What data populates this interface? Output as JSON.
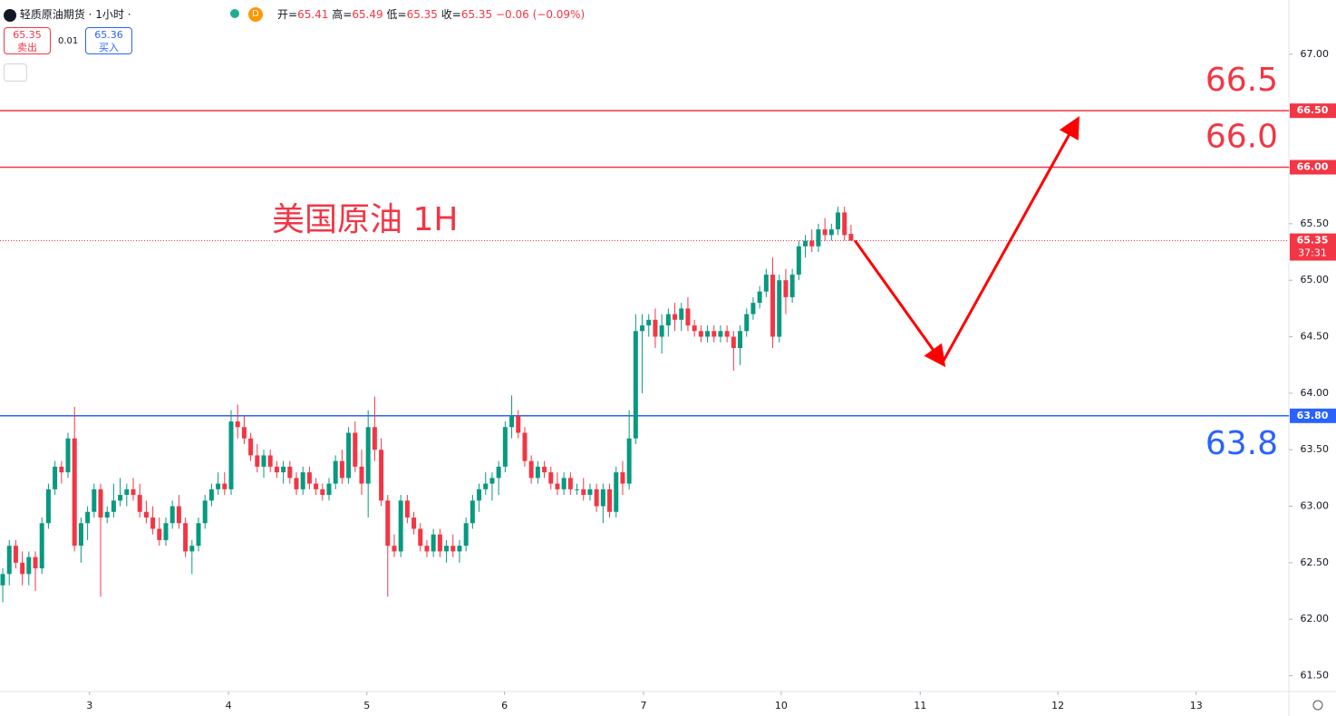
{
  "header": {
    "symbol": "轻质原油期货 · 1小时 ·",
    "badge": "D",
    "ohlc": [
      "开=",
      "65.41",
      "高=",
      "65.49",
      "低=",
      "65.35",
      "收=",
      "65.35"
    ],
    "change": "−0.06 (−0.09%)",
    "sell": {
      "price": "65.35",
      "label": "卖出"
    },
    "spread": "0.01",
    "buy": {
      "price": "65.36",
      "label": "买入"
    }
  },
  "chart_data": {
    "type": "candlestick",
    "annotation": "美国原油 1H",
    "up_color": "#089981",
    "down_color": "#f23645",
    "ohlc": [
      [
        62.3,
        62.45,
        62.15,
        62.4
      ],
      [
        62.4,
        62.7,
        62.3,
        62.65
      ],
      [
        62.65,
        62.7,
        62.45,
        62.5
      ],
      [
        62.5,
        62.6,
        62.3,
        62.4
      ],
      [
        62.4,
        62.6,
        62.3,
        62.55
      ],
      [
        62.55,
        62.6,
        62.25,
        62.45
      ],
      [
        62.45,
        62.9,
        62.4,
        62.85
      ],
      [
        62.85,
        63.2,
        62.8,
        63.15
      ],
      [
        63.15,
        63.4,
        63.1,
        63.35
      ],
      [
        63.35,
        63.4,
        63.2,
        63.3
      ],
      [
        63.3,
        63.65,
        63.25,
        63.6
      ],
      [
        63.6,
        63.88,
        62.6,
        62.65
      ],
      [
        62.65,
        62.9,
        62.5,
        62.85
      ],
      [
        62.85,
        63.0,
        62.7,
        62.95
      ],
      [
        62.95,
        63.2,
        62.9,
        63.15
      ],
      [
        63.15,
        63.2,
        62.2,
        62.9
      ],
      [
        62.9,
        63.0,
        62.85,
        62.95
      ],
      [
        62.95,
        63.2,
        62.9,
        63.05
      ],
      [
        63.05,
        63.25,
        63.0,
        63.1
      ],
      [
        63.1,
        63.2,
        63.0,
        63.15
      ],
      [
        63.15,
        63.25,
        63.05,
        63.1
      ],
      [
        63.1,
        63.2,
        62.9,
        62.95
      ],
      [
        62.95,
        63.05,
        62.85,
        62.9
      ],
      [
        62.9,
        63.0,
        62.75,
        62.8
      ],
      [
        62.8,
        62.9,
        62.65,
        62.7
      ],
      [
        62.7,
        62.9,
        62.65,
        62.85
      ],
      [
        62.85,
        63.05,
        62.8,
        63.0
      ],
      [
        63.0,
        63.1,
        62.8,
        62.85
      ],
      [
        62.85,
        62.9,
        62.55,
        62.6
      ],
      [
        62.6,
        62.7,
        62.4,
        62.65
      ],
      [
        62.65,
        62.9,
        62.6,
        62.85
      ],
      [
        62.85,
        63.1,
        62.8,
        63.05
      ],
      [
        63.05,
        63.2,
        63.0,
        63.15
      ],
      [
        63.15,
        63.3,
        63.1,
        63.2
      ],
      [
        63.2,
        63.3,
        63.1,
        63.15
      ],
      [
        63.15,
        63.85,
        63.1,
        63.75
      ],
      [
        63.75,
        63.9,
        63.6,
        63.7
      ],
      [
        63.7,
        63.8,
        63.55,
        63.6
      ],
      [
        63.6,
        63.65,
        63.4,
        63.45
      ],
      [
        63.45,
        63.55,
        63.3,
        63.35
      ],
      [
        63.35,
        63.5,
        63.25,
        63.45
      ],
      [
        63.45,
        63.5,
        63.3,
        63.35
      ],
      [
        63.35,
        63.4,
        63.25,
        63.3
      ],
      [
        63.3,
        63.4,
        63.2,
        63.35
      ],
      [
        63.35,
        63.4,
        63.2,
        63.25
      ],
      [
        63.25,
        63.3,
        63.1,
        63.15
      ],
      [
        63.15,
        63.35,
        63.1,
        63.3
      ],
      [
        63.3,
        63.35,
        63.15,
        63.2
      ],
      [
        63.2,
        63.25,
        63.1,
        63.15
      ],
      [
        63.15,
        63.2,
        63.05,
        63.1
      ],
      [
        63.1,
        63.25,
        63.05,
        63.2
      ],
      [
        63.2,
        63.45,
        63.15,
        63.4
      ],
      [
        63.4,
        63.5,
        63.2,
        63.25
      ],
      [
        63.25,
        63.7,
        63.2,
        63.65
      ],
      [
        63.65,
        63.75,
        63.3,
        63.35
      ],
      [
        63.35,
        63.5,
        63.1,
        63.2
      ],
      [
        63.2,
        63.85,
        62.9,
        63.7
      ],
      [
        63.7,
        63.97,
        63.4,
        63.5
      ],
      [
        63.5,
        63.6,
        63.0,
        63.05
      ],
      [
        63.05,
        63.1,
        62.2,
        62.65
      ],
      [
        62.65,
        62.75,
        62.55,
        62.6
      ],
      [
        62.6,
        63.1,
        62.55,
        63.05
      ],
      [
        63.05,
        63.1,
        62.85,
        62.9
      ],
      [
        62.9,
        62.95,
        62.75,
        62.8
      ],
      [
        62.8,
        62.85,
        62.6,
        62.65
      ],
      [
        62.65,
        62.7,
        62.55,
        62.6
      ],
      [
        62.6,
        62.8,
        62.55,
        62.75
      ],
      [
        62.75,
        62.8,
        62.55,
        62.6
      ],
      [
        62.6,
        62.7,
        62.5,
        62.65
      ],
      [
        62.65,
        62.75,
        62.55,
        62.6
      ],
      [
        62.6,
        62.7,
        62.5,
        62.65
      ],
      [
        62.65,
        62.9,
        62.6,
        62.85
      ],
      [
        62.85,
        63.1,
        62.8,
        63.05
      ],
      [
        63.05,
        63.2,
        62.95,
        63.15
      ],
      [
        63.15,
        63.3,
        63.1,
        63.2
      ],
      [
        63.2,
        63.3,
        63.05,
        63.25
      ],
      [
        63.25,
        63.4,
        63.1,
        63.35
      ],
      [
        63.35,
        63.75,
        63.3,
        63.7
      ],
      [
        63.7,
        63.98,
        63.6,
        63.8
      ],
      [
        63.8,
        63.85,
        63.6,
        63.65
      ],
      [
        63.65,
        63.7,
        63.35,
        63.4
      ],
      [
        63.4,
        63.45,
        63.2,
        63.25
      ],
      [
        63.25,
        63.4,
        63.2,
        63.35
      ],
      [
        63.35,
        63.4,
        63.25,
        63.3
      ],
      [
        63.3,
        63.35,
        63.15,
        63.2
      ],
      [
        63.2,
        63.3,
        63.1,
        63.15
      ],
      [
        63.15,
        63.3,
        63.1,
        63.25
      ],
      [
        63.25,
        63.3,
        63.1,
        63.15
      ],
      [
        63.15,
        63.2,
        63.1,
        63.15
      ],
      [
        63.15,
        63.25,
        63.05,
        63.1
      ],
      [
        63.1,
        63.2,
        63.05,
        63.15
      ],
      [
        63.15,
        63.2,
        62.95,
        63.0
      ],
      [
        63.0,
        63.2,
        62.85,
        63.15
      ],
      [
        63.15,
        63.2,
        62.9,
        62.95
      ],
      [
        62.95,
        63.35,
        62.9,
        63.3
      ],
      [
        63.3,
        63.4,
        63.1,
        63.2
      ],
      [
        63.2,
        63.85,
        63.15,
        63.6
      ],
      [
        63.6,
        64.7,
        63.55,
        64.55
      ],
      [
        64.55,
        64.7,
        64.0,
        64.6
      ],
      [
        64.6,
        64.7,
        64.5,
        64.65
      ],
      [
        64.65,
        64.75,
        64.4,
        64.5
      ],
      [
        64.5,
        64.7,
        64.35,
        64.6
      ],
      [
        64.6,
        64.75,
        64.5,
        64.7
      ],
      [
        64.7,
        64.8,
        64.55,
        64.65
      ],
      [
        64.65,
        64.8,
        64.55,
        64.75
      ],
      [
        64.75,
        64.85,
        64.55,
        64.6
      ],
      [
        64.6,
        64.65,
        64.5,
        64.55
      ],
      [
        64.55,
        64.6,
        64.45,
        64.5
      ],
      [
        64.5,
        64.6,
        64.45,
        64.55
      ],
      [
        64.55,
        64.6,
        64.45,
        64.5
      ],
      [
        64.5,
        64.6,
        64.45,
        64.55
      ],
      [
        64.55,
        64.6,
        64.45,
        64.5
      ],
      [
        64.5,
        64.55,
        64.2,
        64.4
      ],
      [
        64.4,
        64.6,
        64.25,
        64.55
      ],
      [
        64.55,
        64.75,
        64.5,
        64.7
      ],
      [
        64.7,
        64.85,
        64.65,
        64.8
      ],
      [
        64.8,
        64.95,
        64.75,
        64.9
      ],
      [
        64.9,
        65.1,
        64.85,
        65.05
      ],
      [
        65.05,
        65.2,
        64.4,
        64.5
      ],
      [
        64.5,
        65.05,
        64.45,
        65.0
      ],
      [
        65.0,
        65.1,
        64.7,
        64.85
      ],
      [
        64.85,
        65.1,
        64.8,
        65.05
      ],
      [
        65.05,
        65.35,
        65.0,
        65.3
      ],
      [
        65.3,
        65.4,
        65.2,
        65.35
      ],
      [
        65.35,
        65.45,
        65.25,
        65.3
      ],
      [
        65.3,
        65.5,
        65.25,
        65.45
      ],
      [
        65.45,
        65.55,
        65.35,
        65.4
      ],
      [
        65.4,
        65.5,
        65.35,
        65.45
      ],
      [
        65.45,
        65.65,
        65.4,
        65.6
      ],
      [
        65.6,
        65.65,
        65.35,
        65.4
      ],
      [
        65.41,
        65.49,
        65.35,
        65.35
      ]
    ],
    "xlim": [
      -0.42,
      197.1
    ],
    "xticks": [
      {
        "value": 13.3,
        "label": "3"
      },
      {
        "value": 34.6,
        "label": "4"
      },
      {
        "value": 55.8,
        "label": "5"
      },
      {
        "value": 76.9,
        "label": "6"
      },
      {
        "value": 98.2,
        "label": "7"
      },
      {
        "value": 119.3,
        "label": "10"
      },
      {
        "value": 140.6,
        "label": "11"
      },
      {
        "value": 161.7,
        "label": "12"
      },
      {
        "value": 182.9,
        "label": "13"
      }
    ],
    "ylim": [
      61.36,
      67.48
    ],
    "yticks": [
      {
        "value": 61.5,
        "label": "61.50"
      },
      {
        "value": 62,
        "label": "62.00"
      },
      {
        "value": 62.5,
        "label": "62.50"
      },
      {
        "value": 63,
        "label": "63.00"
      },
      {
        "value": 63.5,
        "label": "63.50"
      },
      {
        "value": 64,
        "label": "64.00"
      },
      {
        "value": 64.5,
        "label": "64.50"
      },
      {
        "value": 65,
        "label": "65.00"
      },
      {
        "value": 65.5,
        "label": "65.50"
      },
      {
        "value": 66,
        "label": "66.00"
      },
      {
        "value": 66.5,
        "label": "66.50"
      },
      {
        "value": 67,
        "label": "67.00"
      }
    ],
    "levels": {
      "values": [
        66.5,
        66.0,
        63.8
      ],
      "value_labels": [
        "66.50",
        "66.00",
        "63.80"
      ],
      "big_labels": [
        "66.5",
        "66.0",
        "63.8"
      ],
      "colors": [
        "#f23645",
        "#f23645",
        "#2962ff"
      ]
    },
    "last_price": {
      "value": 65.35,
      "label": "65.35",
      "countdown": "37:31"
    },
    "arrow": {
      "x": [
        130.6,
        144.0,
        164.6
      ],
      "y": [
        65.35,
        64.27,
        66.41
      ],
      "color": "#ff0000"
    }
  }
}
